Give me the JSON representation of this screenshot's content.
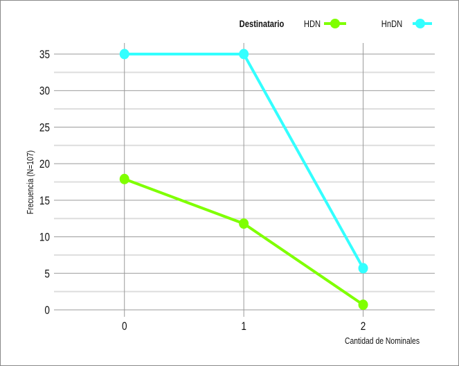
{
  "chart_data": {
    "type": "line",
    "xlabel": "Cantidad de Nominales",
    "ylabel": "Frecuencia (N=107)",
    "legend_title": "Destinatario",
    "legend_position": "top-right",
    "x": [
      0,
      1,
      2
    ],
    "x_ticks": [
      "0",
      "1",
      "2"
    ],
    "y_ticks": [
      0,
      5,
      10,
      15,
      20,
      25,
      30,
      35
    ],
    "ylim": [
      0,
      35
    ],
    "xlim": [
      -0.59,
      2.6
    ],
    "grid": true,
    "series": [
      {
        "name": "HDN",
        "color": "#7fff00",
        "values": [
          17.9,
          11.8,
          0.7
        ]
      },
      {
        "name": "HnDN",
        "color": "#33ffff",
        "values": [
          35,
          35,
          5.7
        ]
      }
    ]
  }
}
